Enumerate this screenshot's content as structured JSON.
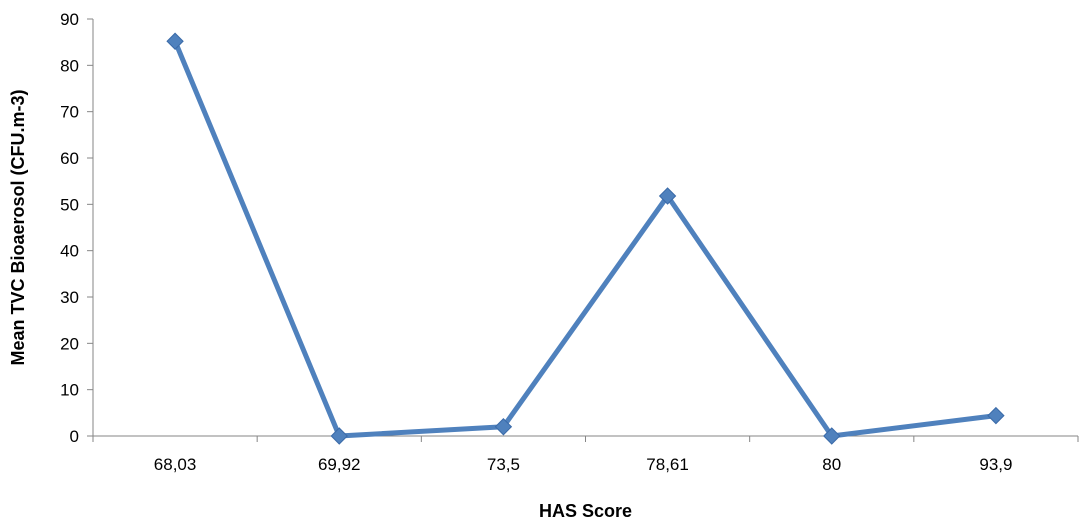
{
  "chart_data": {
    "type": "line",
    "title": "",
    "xlabel": "HAS Score",
    "ylabel": "Mean TVC Bioaerosol (CFU.m-3)",
    "categories": [
      "68,03",
      "69,92",
      "73,5",
      "78,61",
      "80",
      "93,9"
    ],
    "series": [
      {
        "values": [
          85.2,
          0,
          2,
          51.8,
          0,
          4.4
        ],
        "color": "#4F81BD",
        "marker": "diamond"
      }
    ],
    "ylim": [
      0,
      90
    ],
    "yticks": [
      0,
      10,
      20,
      30,
      40,
      50,
      60,
      70,
      80,
      90
    ],
    "grid": false,
    "legend": "none"
  }
}
